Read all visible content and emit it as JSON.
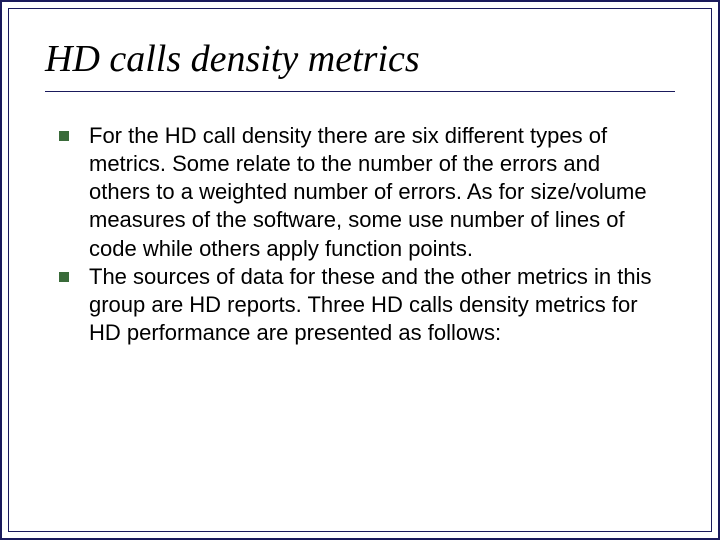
{
  "slide": {
    "title": "HD calls density metrics",
    "title_fontsize": 38,
    "title_fontfamily": "Times New Roman",
    "title_style": "italic",
    "title_color": "#000000",
    "title_underline_color": "#1a1a5c",
    "outer_border_color": "#1a1a5c",
    "inner_border_color": "#1a1a5c",
    "background_color": "#ffffff",
    "body_fontfamily": "Arial",
    "body_fontsize": 22,
    "body_color": "#000000",
    "bullet_color": "#3a6b3a",
    "bullet_size": 10,
    "bullets": [
      "For the HD call density  there are  six different types of metrics. Some relate to the number of the errors and others to a weighted number of errors. As for size/volume measures of the software, some use number of lines of code while others apply function points.",
      "The sources of data for these and the other metrics in this group are HD reports. Three HD calls density metrics for HD performance are presented as follows:"
    ]
  }
}
